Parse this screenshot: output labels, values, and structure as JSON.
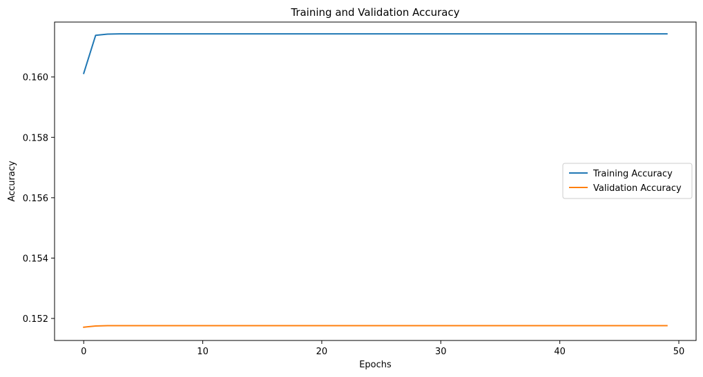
{
  "chart_data": {
    "type": "line",
    "title": "Training and Validation Accuracy",
    "xlabel": "Epochs",
    "ylabel": "Accuracy",
    "xlim": [
      -2.45,
      51.45
    ],
    "ylim": [
      0.15127,
      0.16182
    ],
    "x_ticks": [
      0,
      10,
      20,
      30,
      40,
      50
    ],
    "y_ticks": [
      0.152,
      0.154,
      0.156,
      0.158,
      0.16
    ],
    "y_tick_labels": [
      "0.152",
      "0.154",
      "0.156",
      "0.158",
      "0.160"
    ],
    "grid": false,
    "legend_position": "center-right",
    "series": [
      {
        "name": "Training Accuracy",
        "color": "#1f77b4",
        "x": [
          0,
          1,
          2,
          3,
          4,
          5,
          6,
          7,
          8,
          9,
          10,
          11,
          12,
          13,
          14,
          15,
          16,
          17,
          18,
          19,
          20,
          21,
          22,
          23,
          24,
          25,
          26,
          27,
          28,
          29,
          30,
          31,
          32,
          33,
          34,
          35,
          36,
          37,
          38,
          39,
          40,
          41,
          42,
          43,
          44,
          45,
          46,
          47,
          48,
          49
        ],
        "values": [
          0.16012,
          0.16138,
          0.16142,
          0.16143,
          0.16143,
          0.16143,
          0.16143,
          0.16143,
          0.16143,
          0.16143,
          0.16143,
          0.16143,
          0.16143,
          0.16143,
          0.16143,
          0.16143,
          0.16143,
          0.16143,
          0.16143,
          0.16143,
          0.16143,
          0.16143,
          0.16143,
          0.16143,
          0.16143,
          0.16143,
          0.16143,
          0.16143,
          0.16143,
          0.16143,
          0.16143,
          0.16143,
          0.16143,
          0.16143,
          0.16143,
          0.16143,
          0.16143,
          0.16143,
          0.16143,
          0.16143,
          0.16143,
          0.16143,
          0.16143,
          0.16143,
          0.16143,
          0.16143,
          0.16143,
          0.16143,
          0.16143,
          0.16143
        ]
      },
      {
        "name": "Validation Accuracy",
        "color": "#ff7f0e",
        "x": [
          0,
          1,
          2,
          3,
          4,
          5,
          6,
          7,
          8,
          9,
          10,
          11,
          12,
          13,
          14,
          15,
          16,
          17,
          18,
          19,
          20,
          21,
          22,
          23,
          24,
          25,
          26,
          27,
          28,
          29,
          30,
          31,
          32,
          33,
          34,
          35,
          36,
          37,
          38,
          39,
          40,
          41,
          42,
          43,
          44,
          45,
          46,
          47,
          48,
          49
        ],
        "values": [
          0.15171,
          0.15175,
          0.15176,
          0.15176,
          0.15176,
          0.15176,
          0.15176,
          0.15176,
          0.15176,
          0.15176,
          0.15176,
          0.15176,
          0.15176,
          0.15176,
          0.15176,
          0.15176,
          0.15176,
          0.15176,
          0.15176,
          0.15176,
          0.15176,
          0.15176,
          0.15176,
          0.15176,
          0.15176,
          0.15176,
          0.15176,
          0.15176,
          0.15176,
          0.15176,
          0.15176,
          0.15176,
          0.15176,
          0.15176,
          0.15176,
          0.15176,
          0.15176,
          0.15176,
          0.15176,
          0.15176,
          0.15176,
          0.15176,
          0.15176,
          0.15176,
          0.15176,
          0.15176,
          0.15176,
          0.15176,
          0.15176,
          0.15176
        ]
      }
    ]
  }
}
